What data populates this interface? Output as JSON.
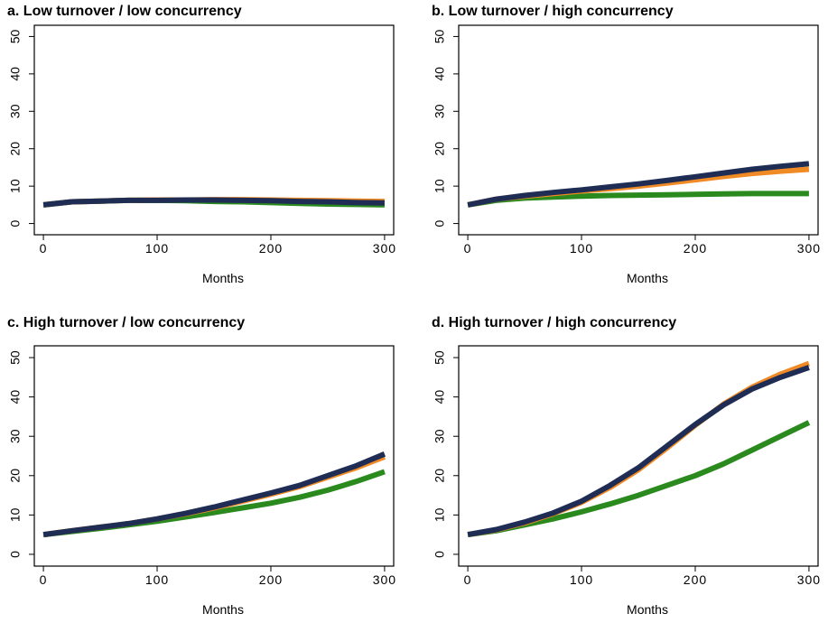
{
  "chart_data": [
    {
      "type": "line",
      "title": "a. Low turnover / low concurrency",
      "xlabel": "Months",
      "x": [
        0,
        25,
        50,
        75,
        100,
        125,
        150,
        175,
        200,
        225,
        250,
        275,
        300
      ],
      "series": [
        {
          "color": "#f08a24",
          "values": [
            5,
            5.8,
            6,
            6.2,
            6.3,
            6.3,
            6.4,
            6.4,
            6.3,
            6.2,
            6.1,
            6,
            5.9
          ]
        },
        {
          "color": "#1f2d55",
          "values": [
            5,
            5.8,
            6,
            6.2,
            6.2,
            6.3,
            6.3,
            6.2,
            6.1,
            5.9,
            5.8,
            5.6,
            5.5
          ]
        },
        {
          "color": "#2a8a1e",
          "values": [
            5,
            5.8,
            6,
            6.2,
            6.2,
            6.1,
            5.9,
            5.8,
            5.6,
            5.4,
            5.2,
            5.1,
            5
          ]
        }
      ],
      "xlim": [
        -8,
        308
      ],
      "ylim": [
        -3,
        53
      ],
      "xticks": [
        0,
        100,
        200,
        300
      ],
      "yticks": [
        0,
        10,
        20,
        30,
        40,
        50
      ]
    },
    {
      "type": "line",
      "title": "b. Low turnover / high concurrency",
      "xlabel": "Months",
      "x": [
        0,
        25,
        50,
        75,
        100,
        125,
        150,
        175,
        200,
        225,
        250,
        275,
        300
      ],
      "series": [
        {
          "color": "#f08a24",
          "values": [
            5,
            6.5,
            7.3,
            8,
            8.7,
            9.3,
            10,
            10.8,
            11.7,
            12.6,
            13.4,
            14,
            14.5
          ]
        },
        {
          "color": "#1f2d55",
          "values": [
            5,
            6.5,
            7.5,
            8.3,
            9,
            9.8,
            10.6,
            11.5,
            12.5,
            13.5,
            14.5,
            15.3,
            16
          ]
        },
        {
          "color": "#2a8a1e",
          "values": [
            5,
            6.2,
            6.8,
            7.1,
            7.3,
            7.5,
            7.6,
            7.7,
            7.8,
            7.9,
            8,
            8,
            8
          ]
        }
      ],
      "xlim": [
        -8,
        308
      ],
      "ylim": [
        -3,
        53
      ],
      "xticks": [
        0,
        100,
        200,
        300
      ],
      "yticks": [
        0,
        10,
        20,
        30,
        40,
        50
      ]
    },
    {
      "type": "line",
      "title": "c. High turnover / low concurrency",
      "xlabel": "Months",
      "x": [
        0,
        25,
        50,
        75,
        100,
        125,
        150,
        175,
        200,
        225,
        250,
        275,
        300
      ],
      "series": [
        {
          "color": "#f08a24",
          "values": [
            5,
            6,
            6.9,
            7.8,
            9,
            10.3,
            11.8,
            13.5,
            15.3,
            17.2,
            19.6,
            22,
            24.8
          ]
        },
        {
          "color": "#1f2d55",
          "values": [
            5,
            6,
            6.9,
            7.8,
            9,
            10.4,
            12,
            13.8,
            15.6,
            17.5,
            20,
            22.5,
            25.5
          ]
        },
        {
          "color": "#2a8a1e",
          "values": [
            5,
            5.8,
            6.6,
            7.5,
            8.4,
            9.5,
            10.6,
            11.8,
            13,
            14.5,
            16.3,
            18.5,
            21
          ]
        }
      ],
      "xlim": [
        -8,
        308
      ],
      "ylim": [
        -3,
        53
      ],
      "xticks": [
        0,
        100,
        200,
        300
      ],
      "yticks": [
        0,
        10,
        20,
        30,
        40,
        50
      ]
    },
    {
      "type": "line",
      "title": "d. High turnover / high concurrency",
      "xlabel": "Months",
      "x": [
        0,
        25,
        50,
        75,
        100,
        125,
        150,
        175,
        200,
        225,
        250,
        275,
        300
      ],
      "series": [
        {
          "color": "#f08a24",
          "values": [
            5,
            6.2,
            8,
            10.3,
            13.2,
            17,
            21.5,
            27,
            32.8,
            38.2,
            42.5,
            45.8,
            48.5
          ]
        },
        {
          "color": "#1f2d55",
          "values": [
            5,
            6.3,
            8.2,
            10.5,
            13.5,
            17.5,
            22,
            27.5,
            33,
            38,
            42,
            45,
            47.5
          ]
        },
        {
          "color": "#2a8a1e",
          "values": [
            5,
            6,
            7.5,
            9,
            10.8,
            12.8,
            15,
            17.5,
            20,
            23,
            26.5,
            30,
            33.5
          ]
        }
      ],
      "xlim": [
        -8,
        308
      ],
      "ylim": [
        -3,
        53
      ],
      "xticks": [
        0,
        100,
        200,
        300
      ],
      "yticks": [
        0,
        10,
        20,
        30,
        40,
        50
      ]
    }
  ]
}
